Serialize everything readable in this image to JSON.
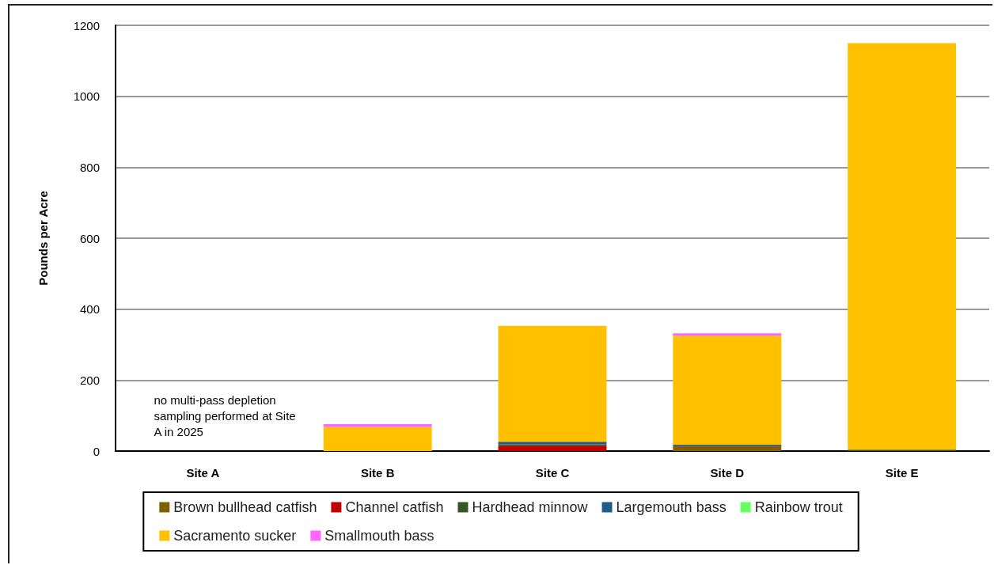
{
  "chart_data": {
    "type": "bar",
    "stacked": true,
    "ylabel": "Pounds per Acre",
    "categories": [
      "Site A",
      "Site B",
      "Site C",
      "Site D",
      "Site E"
    ],
    "series": [
      {
        "name": "Brown bullhead catfish",
        "color": "#7f6000",
        "values": [
          null,
          0,
          0,
          11,
          0
        ]
      },
      {
        "name": "Channel catfish",
        "color": "#c00000",
        "values": [
          null,
          0,
          15,
          2,
          0
        ]
      },
      {
        "name": "Hardhead minnow",
        "color": "#375623",
        "values": [
          null,
          0,
          4,
          2,
          4
        ]
      },
      {
        "name": "Largemouth bass",
        "color": "#1f5c87",
        "values": [
          null,
          0,
          7,
          3,
          0
        ]
      },
      {
        "name": "Rainbow trout",
        "color": "#66ff66",
        "values": [
          null,
          0,
          0,
          0,
          0
        ]
      },
      {
        "name": "Sacramento sucker",
        "color": "#ffc000",
        "values": [
          null,
          68,
          327,
          307,
          1146
        ]
      },
      {
        "name": "Smallmouth bass",
        "color": "#ff66ff",
        "values": [
          null,
          8,
          0,
          7,
          0
        ]
      }
    ],
    "ylim": [
      0,
      1200
    ],
    "yticks": [
      0,
      200,
      400,
      600,
      800,
      1000,
      1200
    ],
    "grid": "y",
    "legend": "bottom",
    "annotations": [
      "no multi-pass depletion sampling performed at Site A in 2025"
    ]
  }
}
